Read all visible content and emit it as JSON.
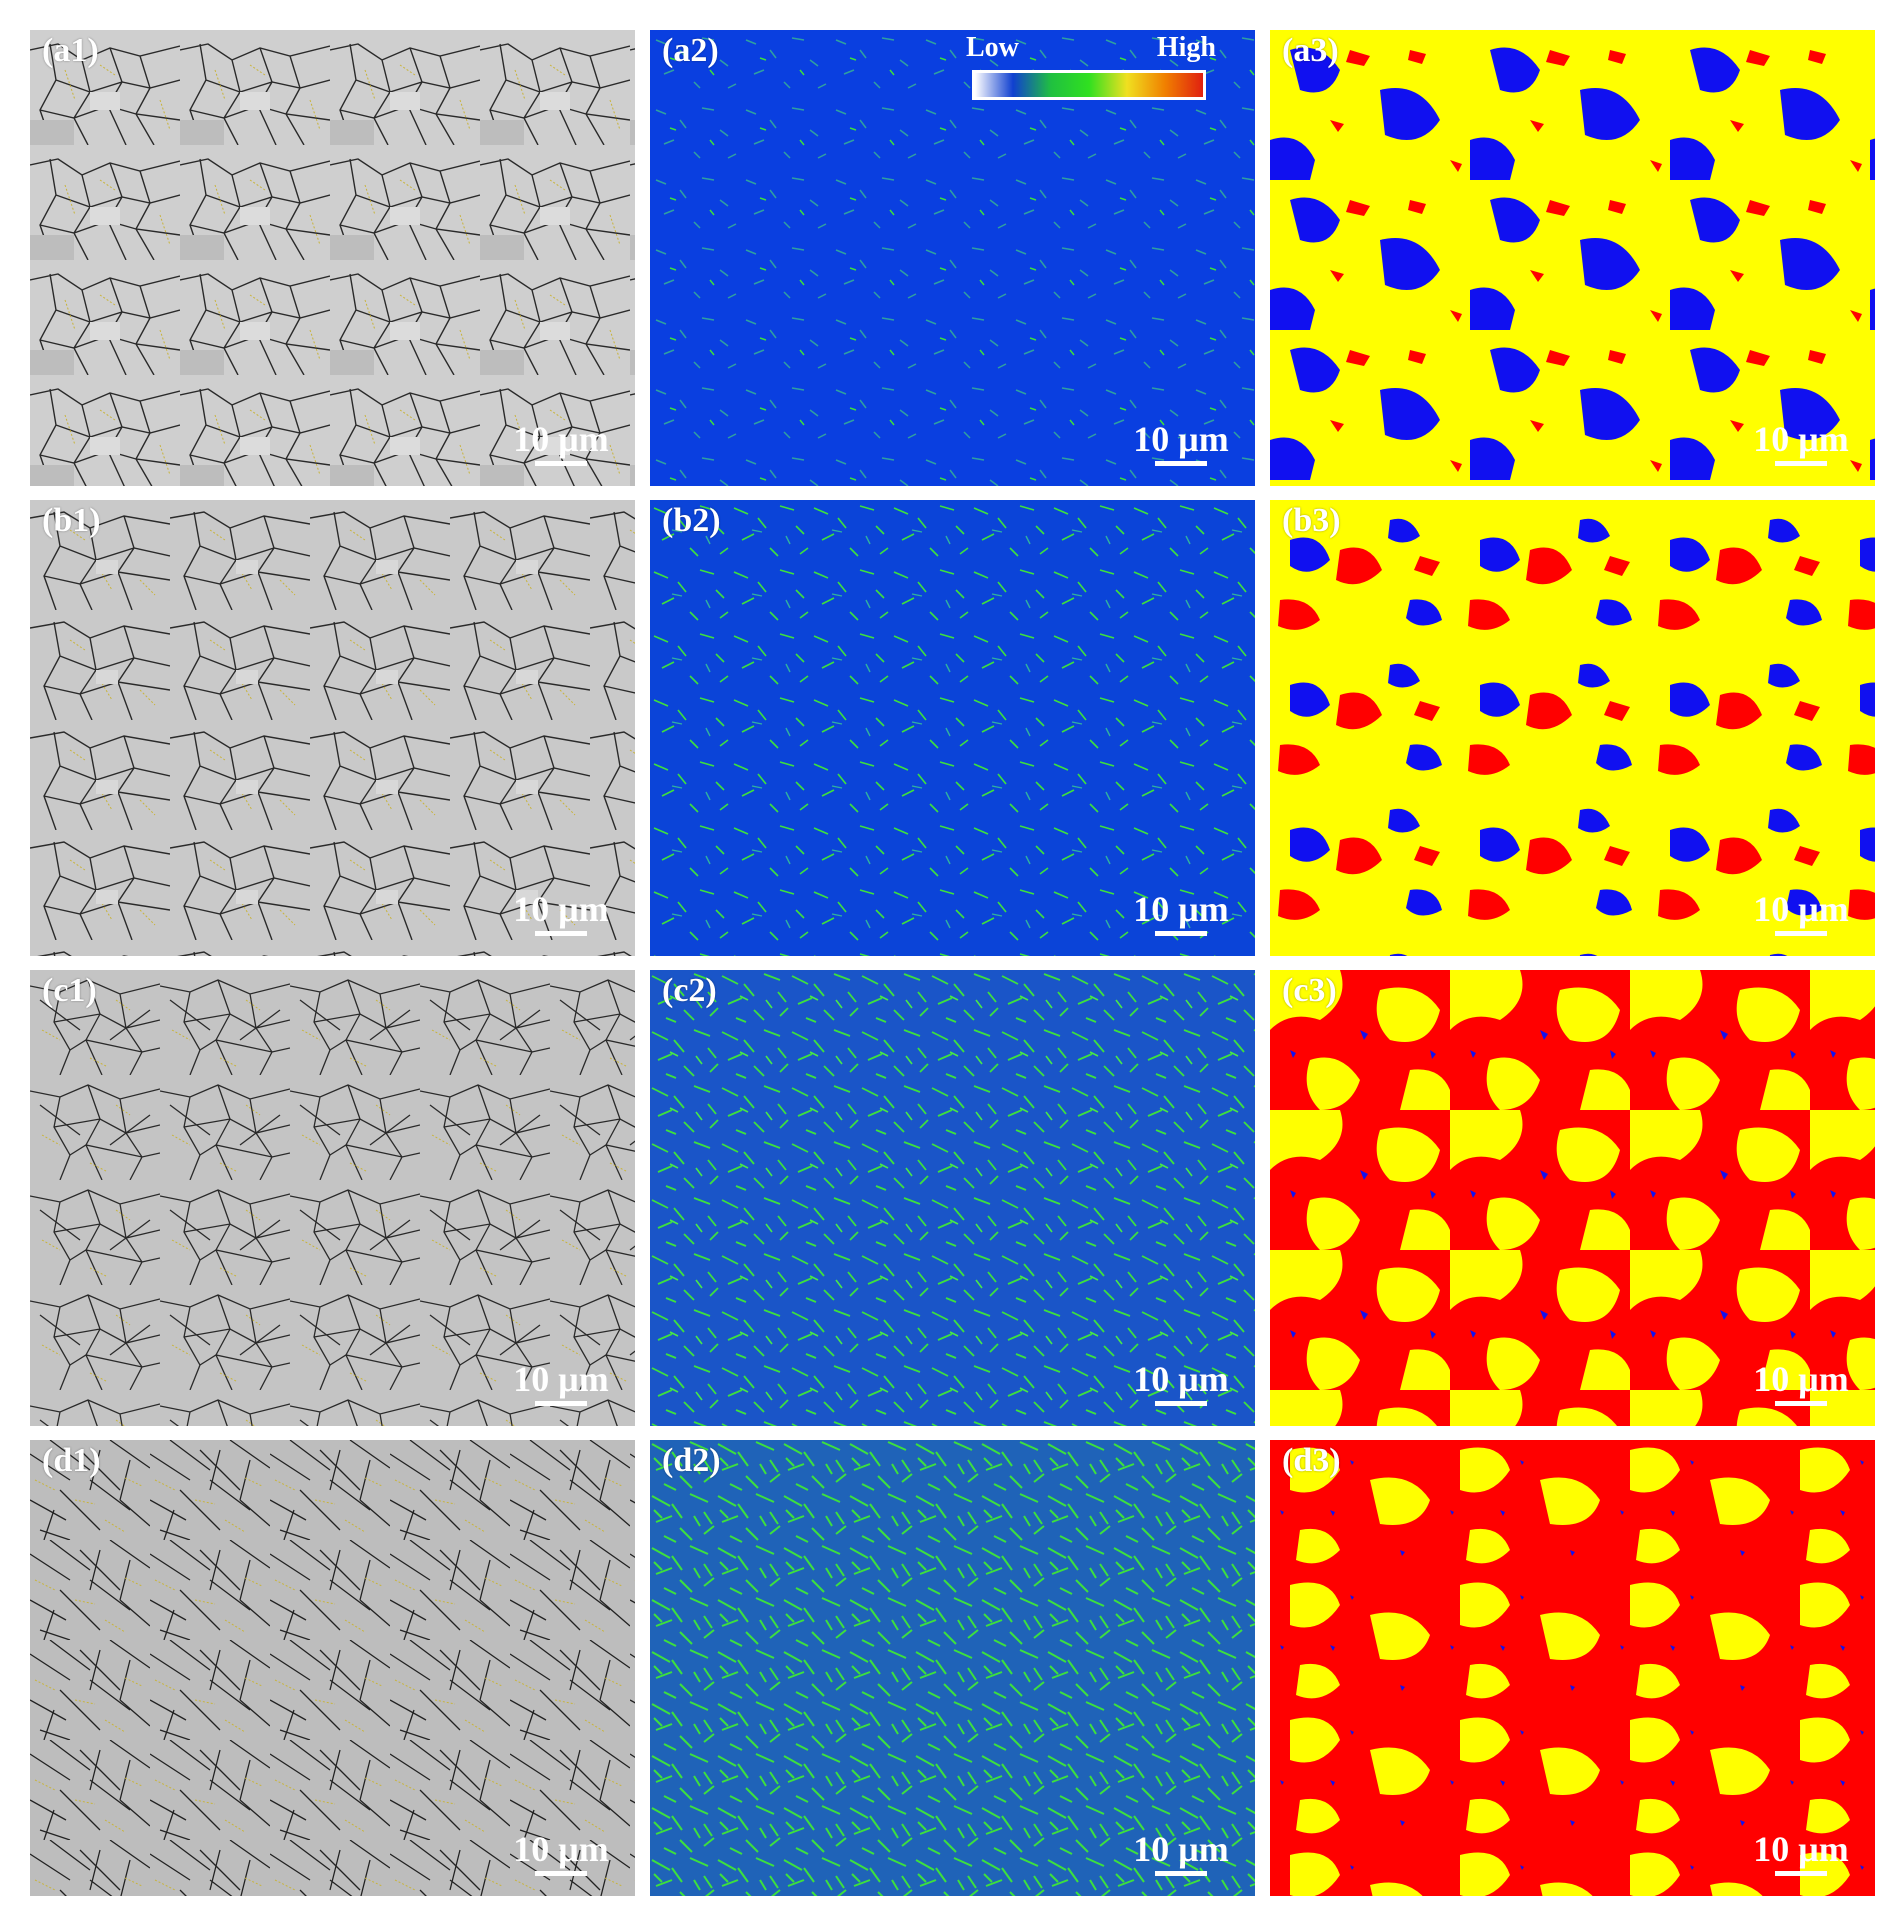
{
  "panels": [
    {
      "label": "(a1)",
      "scale": "10 μm"
    },
    {
      "label": "(a2)",
      "scale": "10 μm"
    },
    {
      "label": "(a3)",
      "scale": "10 μm"
    },
    {
      "label": "(b1)",
      "scale": "10 μm"
    },
    {
      "label": "(b2)",
      "scale": "10 μm"
    },
    {
      "label": "(b3)",
      "scale": "10 μm"
    },
    {
      "label": "(c1)",
      "scale": "10 μm"
    },
    {
      "label": "(c2)",
      "scale": "10 μm"
    },
    {
      "label": "(c3)",
      "scale": "10 μm"
    },
    {
      "label": "(d1)",
      "scale": "10 μm"
    },
    {
      "label": "(d2)",
      "scale": "10 μm"
    },
    {
      "label": "(d3)",
      "scale": "10 μm"
    }
  ],
  "colorbar": {
    "low": "Low",
    "high": "High",
    "colors": [
      "#ffffff",
      "#1040d0",
      "#20c040",
      "#30e020",
      "#f0e020",
      "#f08000",
      "#e02010"
    ]
  },
  "colors": {
    "phase_blue": "#1010f0",
    "phase_yellow": "#ffff00",
    "phase_red": "#ff0000",
    "kam_low": "#0a3fe0",
    "kam_green": "#3de03d",
    "boundary_high": "#111111",
    "boundary_low": "#d4c030"
  }
}
